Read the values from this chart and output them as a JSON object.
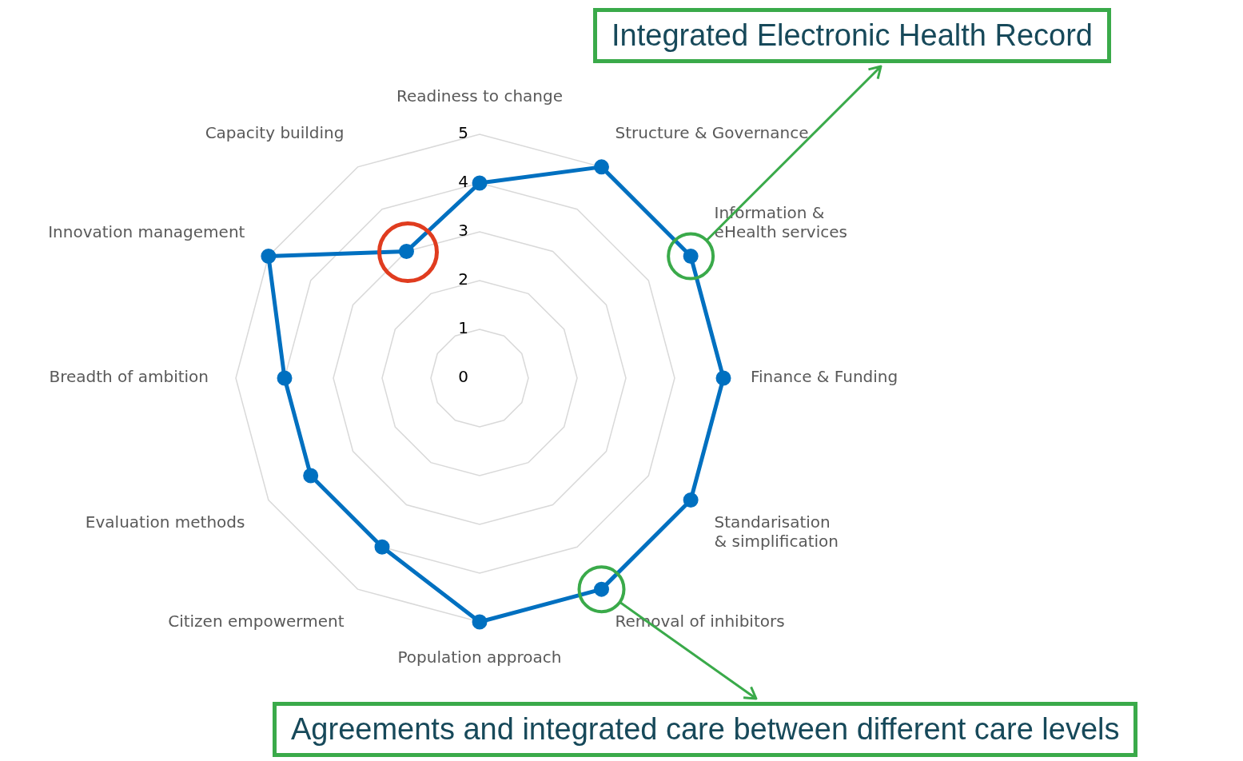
{
  "chart_data": {
    "type": "radar",
    "categories": [
      "Readiness to change",
      "Structure & Governance",
      "Information & eHealth services",
      "Finance & Funding",
      "Standarisation & simplification",
      "Removal of inhibitors",
      "Population approach",
      "Citizen empowerment",
      "Evaluation methods",
      "Breadth of ambition",
      "Innovation management",
      "Capacity building"
    ],
    "series": [
      {
        "color": "#0070c0",
        "values": [
          4,
          5,
          5,
          5,
          5,
          5,
          5,
          4,
          4,
          4,
          5,
          3
        ]
      }
    ],
    "ylim": [
      0,
      5
    ],
    "yticks": [
      0,
      1,
      2,
      3,
      4,
      5
    ],
    "grid": true,
    "legend": false,
    "marker": "circle",
    "line_style": "solid",
    "annotations": [
      {
        "text": "Integrated Electronic Health Record",
        "x": "Information & eHealth services"
      },
      {
        "text": "Agreements and integrated care between different care levels",
        "x": "Removal of inhibitors"
      }
    ]
  }
}
